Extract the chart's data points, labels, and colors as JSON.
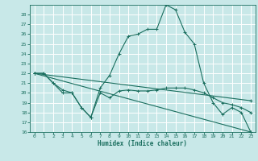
{
  "title": "",
  "xlabel": "Humidex (Indice chaleur)",
  "bg_color": "#c8e8e8",
  "grid_color": "#ffffff",
  "line_color": "#1a6e5e",
  "xlim": [
    -0.5,
    23.5
  ],
  "ylim": [
    16,
    29
  ],
  "xticks": [
    0,
    1,
    2,
    3,
    4,
    5,
    6,
    7,
    8,
    9,
    10,
    11,
    12,
    13,
    14,
    15,
    16,
    17,
    18,
    19,
    20,
    21,
    22,
    23
  ],
  "yticks": [
    16,
    17,
    18,
    19,
    20,
    21,
    22,
    23,
    24,
    25,
    26,
    27,
    28
  ],
  "series": [
    {
      "x": [
        0,
        1,
        2,
        3,
        4,
        5,
        6,
        7,
        8,
        9,
        10,
        11,
        12,
        13,
        14,
        15,
        16,
        17,
        18,
        19,
        20,
        21,
        22,
        23
      ],
      "y": [
        22,
        22,
        21,
        20,
        20,
        18.5,
        17.5,
        20.5,
        21.8,
        24,
        25.8,
        26,
        26.5,
        26.5,
        29,
        28.5,
        26.2,
        25,
        21,
        19,
        17.8,
        18.5,
        18,
        16
      ]
    },
    {
      "x": [
        0,
        1,
        2,
        3,
        4,
        5,
        6,
        7,
        8,
        9,
        10,
        11,
        12,
        13,
        14,
        15,
        16,
        17,
        18,
        19,
        20,
        21,
        22,
        23
      ],
      "y": [
        22,
        22,
        21,
        20.3,
        20,
        18.5,
        17.5,
        20,
        19.5,
        20.2,
        20.3,
        20.2,
        20.2,
        20.3,
        20.5,
        20.5,
        20.5,
        20.3,
        20,
        19.5,
        19,
        18.8,
        18.5,
        18.0
      ]
    },
    {
      "x": [
        0,
        23
      ],
      "y": [
        22,
        19.2
      ]
    },
    {
      "x": [
        0,
        23
      ],
      "y": [
        22,
        16
      ]
    }
  ]
}
